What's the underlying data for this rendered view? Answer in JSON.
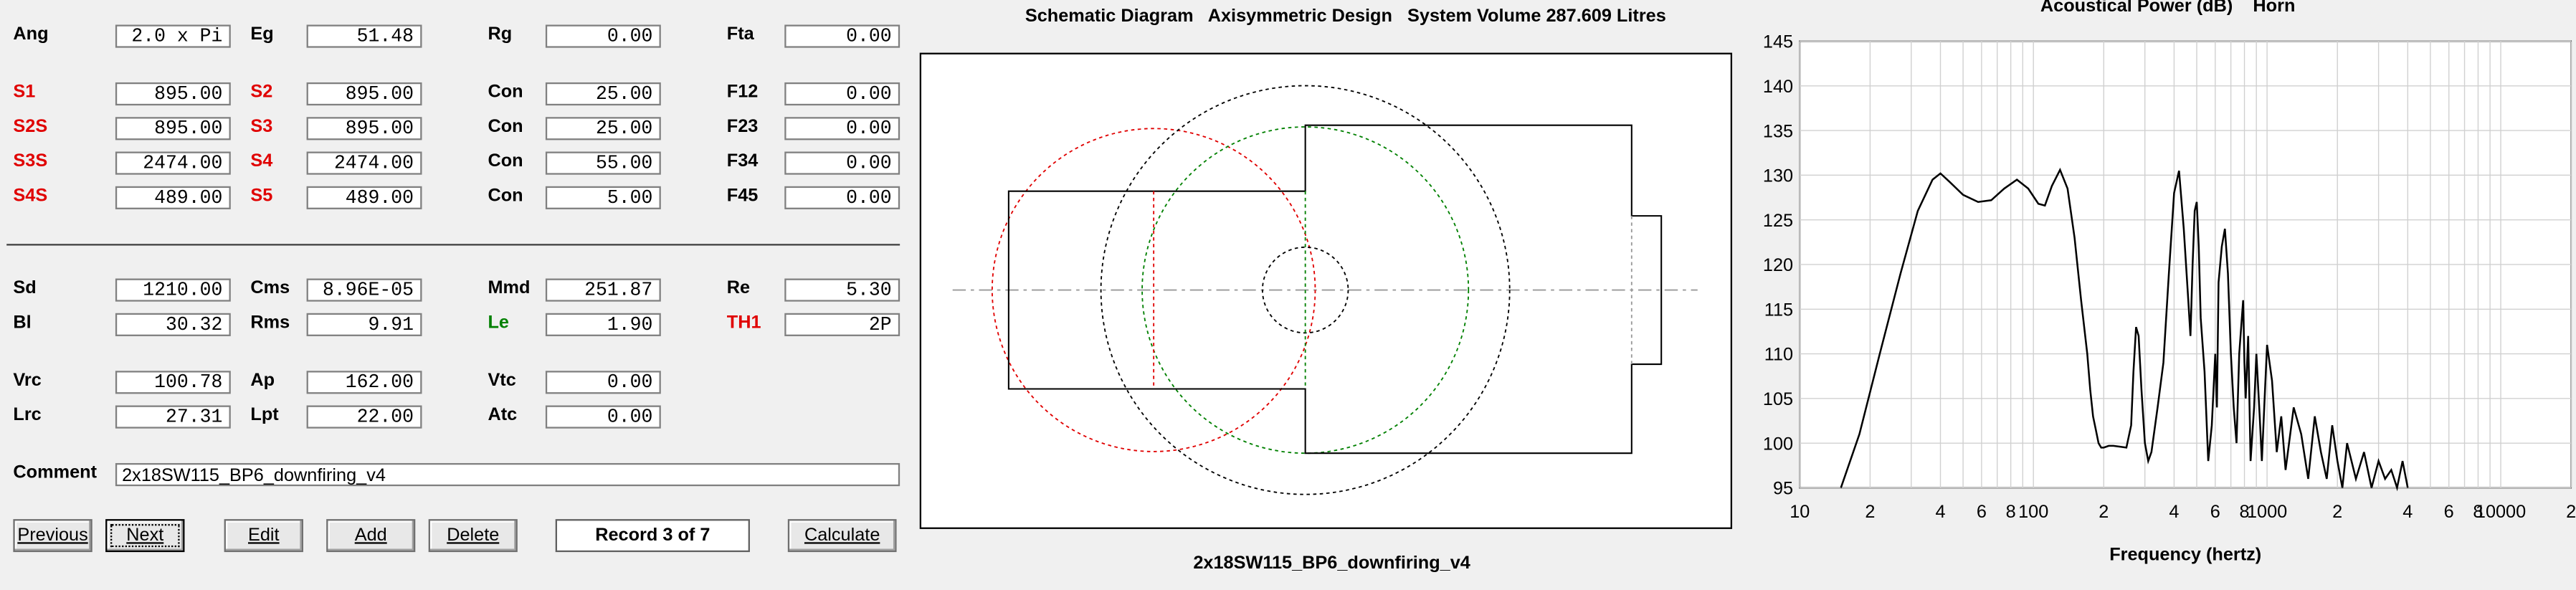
{
  "params": {
    "row1": [
      {
        "label": "Ang",
        "value": "2.0 x Pi",
        "color": "black"
      },
      {
        "label": "Eg",
        "value": "51.48",
        "color": "black"
      },
      {
        "label": "Rg",
        "value": "0.00",
        "color": "black"
      },
      {
        "label": "Fta",
        "value": "0.00",
        "color": "black"
      }
    ],
    "row2": [
      {
        "label": "S1",
        "value": "895.00",
        "color": "red"
      },
      {
        "label": "S2",
        "value": "895.00",
        "color": "red"
      },
      {
        "label": "Con",
        "value": "25.00",
        "color": "black"
      },
      {
        "label": "F12",
        "value": "0.00",
        "color": "black"
      }
    ],
    "row3": [
      {
        "label": "S2S",
        "value": "895.00",
        "color": "red"
      },
      {
        "label": "S3",
        "value": "895.00",
        "color": "red"
      },
      {
        "label": "Con",
        "value": "25.00",
        "color": "black"
      },
      {
        "label": "F23",
        "value": "0.00",
        "color": "black"
      }
    ],
    "row4": [
      {
        "label": "S3S",
        "value": "2474.00",
        "color": "red"
      },
      {
        "label": "S4",
        "value": "2474.00",
        "color": "red"
      },
      {
        "label": "Con",
        "value": "55.00",
        "color": "black"
      },
      {
        "label": "F34",
        "value": "0.00",
        "color": "black"
      }
    ],
    "row5": [
      {
        "label": "S4S",
        "value": "489.00",
        "color": "red"
      },
      {
        "label": "S5",
        "value": "489.00",
        "color": "red"
      },
      {
        "label": "Con",
        "value": "5.00",
        "color": "black"
      },
      {
        "label": "F45",
        "value": "0.00",
        "color": "black"
      }
    ],
    "row6": [
      {
        "label": "Sd",
        "value": "1210.00",
        "color": "black"
      },
      {
        "label": "Cms",
        "value": "8.96E-05",
        "color": "black"
      },
      {
        "label": "Mmd",
        "value": "251.87",
        "color": "black"
      },
      {
        "label": "Re",
        "value": "5.30",
        "color": "black"
      }
    ],
    "row7": [
      {
        "label": "Bl",
        "value": "30.32",
        "color": "black"
      },
      {
        "label": "Rms",
        "value": "9.91",
        "color": "black"
      },
      {
        "label": "Le",
        "value": "1.90",
        "color": "green"
      },
      {
        "label": "TH1",
        "value": "2P",
        "color": "red"
      }
    ],
    "row8": [
      {
        "label": "Vrc",
        "value": "100.78",
        "color": "black"
      },
      {
        "label": "Ap",
        "value": "162.00",
        "color": "black"
      },
      {
        "label": "Vtc",
        "value": "0.00",
        "color": "black"
      }
    ],
    "row9": [
      {
        "label": "Lrc",
        "value": "27.31",
        "color": "black"
      },
      {
        "label": "Lpt",
        "value": "22.00",
        "color": "black"
      },
      {
        "label": "Atc",
        "value": "0.00",
        "color": "black"
      }
    ]
  },
  "comment": {
    "label": "Comment",
    "value": "2x18SW115_BP6_downfiring_v4"
  },
  "buttons": {
    "previous": "Previous",
    "next": "Next",
    "edit": "Edit",
    "add": "Add",
    "delete": "Delete",
    "calculate": "Calculate"
  },
  "record": "Record 3 of 7",
  "schematic": {
    "title_a": "Schematic Diagram",
    "title_b": "Axisymmetric Design",
    "title_c": "System Volume 287.609 Litres",
    "caption": "2x18SW115_BP6_downfiring_v4"
  },
  "chart_data": {
    "type": "line",
    "title": "Acoustical Power (dB)",
    "subtitle": "Horn",
    "xlabel": "Frequency (hertz)",
    "ylabel": "",
    "xscale": "log",
    "xlim": [
      10,
      20000
    ],
    "ylim": [
      95,
      145
    ],
    "x_tick_labels": [
      "10",
      "2",
      "4",
      "6",
      "8",
      "100",
      "2",
      "4",
      "6",
      "8",
      "1000",
      "2",
      "4",
      "6",
      "8",
      "10000",
      "2"
    ],
    "x_tick_values": [
      10,
      20,
      40,
      60,
      80,
      100,
      200,
      400,
      600,
      800,
      1000,
      2000,
      4000,
      6000,
      8000,
      10000,
      20000
    ],
    "y_ticks": [
      95,
      100,
      105,
      110,
      115,
      120,
      125,
      130,
      135,
      140,
      145
    ],
    "grid": true,
    "series": [
      {
        "color": "#000000",
        "x": [
          15,
          18,
          22,
          27,
          32,
          37,
          40,
          44,
          50,
          58,
          66,
          75,
          85,
          95,
          105,
          112,
          120,
          130,
          140,
          150,
          160,
          170,
          175,
          180,
          185,
          190,
          195,
          200,
          210,
          220,
          235,
          250,
          262,
          268,
          275,
          282,
          290,
          300,
          310,
          320,
          340,
          360,
          380,
          400,
          420,
          440,
          460,
          470,
          480,
          490,
          500,
          510,
          520,
          540,
          560,
          580,
          590,
          600,
          610,
          620,
          640,
          660,
          680,
          700,
          720,
          740,
          760,
          790,
          800,
          810,
          830,
          850,
          880,
          900,
          930,
          950,
          980,
          1000,
          1050,
          1100,
          1150,
          1200,
          1300,
          1400,
          1500,
          1600,
          1700,
          1800,
          1900,
          2000,
          2100,
          2200,
          2400,
          2600,
          2800,
          3000,
          3200,
          3400,
          3600,
          3800,
          4000
        ],
        "y": [
          95,
          101,
          110,
          119,
          126,
          129.5,
          130.2,
          129.2,
          127.8,
          127,
          127.2,
          128.5,
          129.5,
          128.5,
          126.8,
          126.6,
          128.8,
          130.6,
          128.5,
          123,
          116,
          110,
          106,
          103,
          101.5,
          100,
          99.5,
          99.5,
          99.7,
          99.7,
          99.6,
          99.5,
          102,
          108,
          113,
          112,
          106,
          100,
          98,
          99,
          104,
          109,
          119,
          128,
          130.5,
          124,
          116,
          112,
          120,
          126,
          127,
          122,
          114,
          108,
          98,
          102,
          106,
          110,
          104,
          118,
          122,
          124,
          119,
          110,
          104,
          100,
          110,
          116,
          109,
          105,
          112,
          98,
          104,
          110,
          103,
          98,
          106,
          111,
          107,
          99,
          103,
          97,
          104,
          101,
          96,
          103,
          99,
          96,
          102,
          98,
          95,
          100,
          96,
          99,
          95,
          98,
          96,
          97,
          95,
          98,
          95
        ]
      }
    ]
  }
}
